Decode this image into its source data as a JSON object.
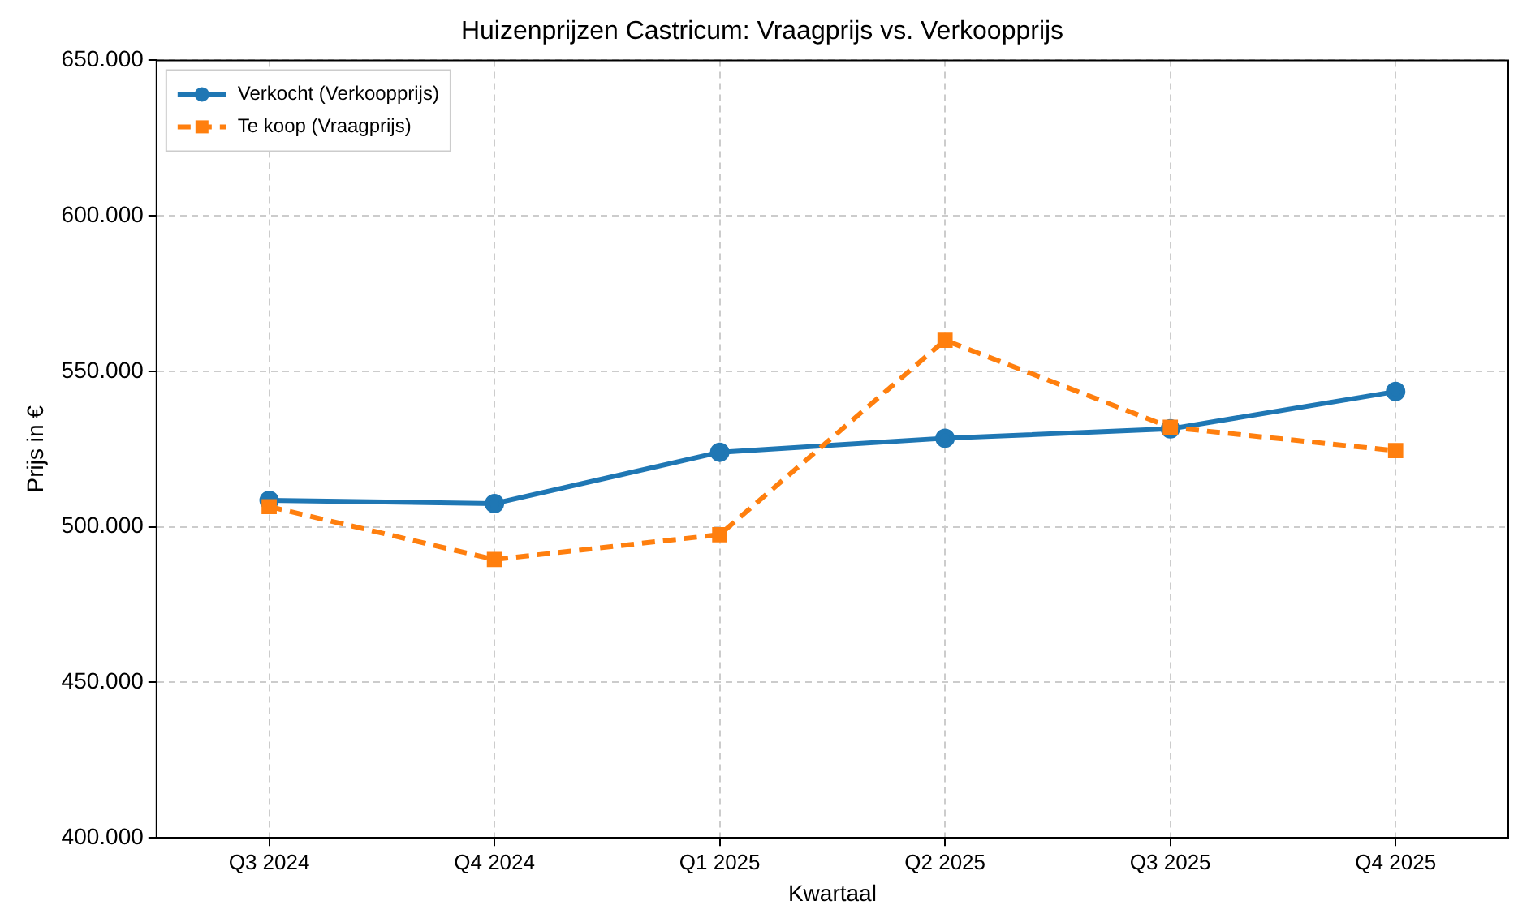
{
  "chart_data": {
    "type": "line",
    "title": "Huizenprijzen Castricum: Vraagprijs vs. Verkoopprijs",
    "xlabel": "Kwartaal",
    "ylabel": "Prijs in €",
    "categories": [
      "Q3 2024",
      "Q4 2024",
      "Q1 2025",
      "Q2 2025",
      "Q3 2025",
      "Q4 2025"
    ],
    "series": [
      {
        "name": "Verkocht (Verkoopprijs)",
        "color": "#1f77b4",
        "marker": "circle",
        "line_style": "solid",
        "values": [
          508500,
          507500,
          524000,
          528500,
          531500,
          543500
        ]
      },
      {
        "name": "Te koop (Vraagprijs)",
        "color": "#ff7f0e",
        "marker": "square",
        "line_style": "dashed",
        "values": [
          506500,
          489500,
          497500,
          560000,
          532000,
          524500
        ]
      }
    ],
    "ylim": [
      400000,
      650000
    ],
    "yticks": [
      {
        "value": 400000,
        "label": "400.000"
      },
      {
        "value": 450000,
        "label": "450.000"
      },
      {
        "value": 500000,
        "label": "500.000"
      },
      {
        "value": 550000,
        "label": "550.000"
      },
      {
        "value": 600000,
        "label": "600.000"
      },
      {
        "value": 650000,
        "label": "650.000"
      }
    ],
    "grid": true,
    "legend": "top left"
  }
}
